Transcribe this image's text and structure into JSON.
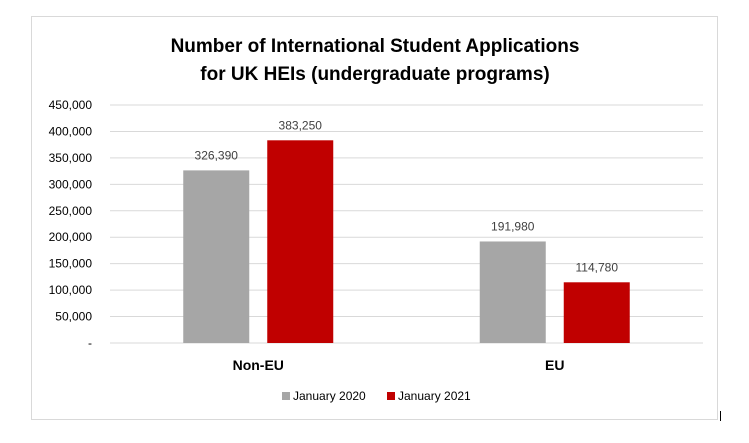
{
  "chart_data": {
    "type": "bar",
    "title_lines": [
      "Number of International Student Applications",
      "for UK HEIs (undergraduate programs)"
    ],
    "xlabel": "",
    "ylabel": "",
    "categories": [
      "Non-EU",
      "EU"
    ],
    "series": [
      {
        "name": "January 2020",
        "color": "#a6a6a6",
        "values": [
          326390,
          191980
        ],
        "labels": [
          "326,390",
          "191,980"
        ]
      },
      {
        "name": "January 2021",
        "color": "#c00000",
        "values": [
          383250,
          114780
        ],
        "labels": [
          "383,250",
          "114,780"
        ]
      }
    ],
    "ylim": [
      0,
      450000
    ],
    "yticks": [
      0,
      50000,
      100000,
      150000,
      200000,
      250000,
      300000,
      350000,
      400000,
      450000
    ],
    "ytick_labels": [
      "-",
      "50,000",
      "100,000",
      "150,000",
      "200,000",
      "250,000",
      "300,000",
      "350,000",
      "400,000",
      "450,000"
    ],
    "grid": true,
    "legend_position": "bottom"
  }
}
